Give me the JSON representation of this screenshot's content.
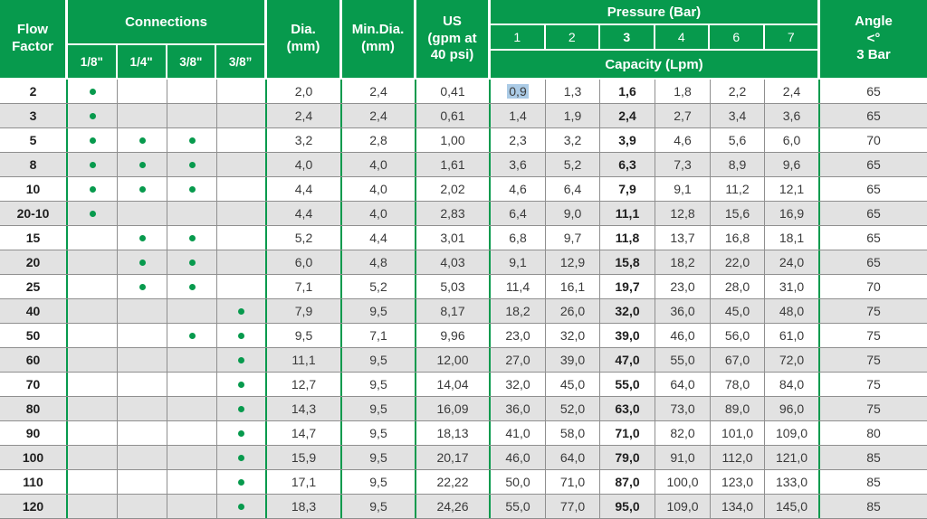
{
  "colors": {
    "header_green": "#079a4d",
    "row_alt_gray": "#e2e2e2",
    "grid_gray": "#8f8f8f",
    "dot_green": "#079a4d",
    "selection_blue": "#abcbe6",
    "header_text": "#ffffff",
    "body_text": "#3a3a3a"
  },
  "header": {
    "flow_factor": "Flow\nFactor",
    "connections": "Connections",
    "connection_sizes": [
      "1/8\"",
      "1/4\"",
      "3/8\"",
      "3/8”"
    ],
    "dia": "Dia.\n(mm)",
    "min_dia": "Min.Dia.\n(mm)",
    "us": "US\n(gpm at\n40 psi)",
    "pressure": "Pressure (Bar)",
    "pressure_values": [
      "1",
      "2",
      "3",
      "4",
      "6",
      "7"
    ],
    "capacity": "Capacity (Lpm)",
    "angle": "Angle\n<°\n3 Bar"
  },
  "rows": [
    {
      "flow": "2",
      "conn": [
        1,
        0,
        0,
        0
      ],
      "dia": "2,0",
      "min_dia": "2,4",
      "us": "0,41",
      "capacity": [
        "0,9",
        "1,3",
        "1,6",
        "1,8",
        "2,2",
        "2,4"
      ],
      "angle": "65",
      "selected": 0
    },
    {
      "flow": "3",
      "conn": [
        1,
        0,
        0,
        0
      ],
      "dia": "2,4",
      "min_dia": "2,4",
      "us": "0,61",
      "capacity": [
        "1,4",
        "1,9",
        "2,4",
        "2,7",
        "3,4",
        "3,6"
      ],
      "angle": "65"
    },
    {
      "flow": "5",
      "conn": [
        1,
        1,
        1,
        0
      ],
      "dia": "3,2",
      "min_dia": "2,8",
      "us": "1,00",
      "capacity": [
        "2,3",
        "3,2",
        "3,9",
        "4,6",
        "5,6",
        "6,0"
      ],
      "angle": "70"
    },
    {
      "flow": "8",
      "conn": [
        1,
        1,
        1,
        0
      ],
      "dia": "4,0",
      "min_dia": "4,0",
      "us": "1,61",
      "capacity": [
        "3,6",
        "5,2",
        "6,3",
        "7,3",
        "8,9",
        "9,6"
      ],
      "angle": "65"
    },
    {
      "flow": "10",
      "conn": [
        1,
        1,
        1,
        0
      ],
      "dia": "4,4",
      "min_dia": "4,0",
      "us": "2,02",
      "capacity": [
        "4,6",
        "6,4",
        "7,9",
        "9,1",
        "11,2",
        "12,1"
      ],
      "angle": "65"
    },
    {
      "flow": "20-10",
      "conn": [
        1,
        0,
        0,
        0
      ],
      "dia": "4,4",
      "min_dia": "4,0",
      "us": "2,83",
      "capacity": [
        "6,4",
        "9,0",
        "11,1",
        "12,8",
        "15,6",
        "16,9"
      ],
      "angle": "65"
    },
    {
      "flow": "15",
      "conn": [
        0,
        1,
        1,
        0
      ],
      "dia": "5,2",
      "min_dia": "4,4",
      "us": "3,01",
      "capacity": [
        "6,8",
        "9,7",
        "11,8",
        "13,7",
        "16,8",
        "18,1"
      ],
      "angle": "65"
    },
    {
      "flow": "20",
      "conn": [
        0,
        1,
        1,
        0
      ],
      "dia": "6,0",
      "min_dia": "4,8",
      "us": "4,03",
      "capacity": [
        "9,1",
        "12,9",
        "15,8",
        "18,2",
        "22,0",
        "24,0"
      ],
      "angle": "65"
    },
    {
      "flow": "25",
      "conn": [
        0,
        1,
        1,
        0
      ],
      "dia": "7,1",
      "min_dia": "5,2",
      "us": "5,03",
      "capacity": [
        "11,4",
        "16,1",
        "19,7",
        "23,0",
        "28,0",
        "31,0"
      ],
      "angle": "70"
    },
    {
      "flow": "40",
      "conn": [
        0,
        0,
        0,
        1
      ],
      "dia": "7,9",
      "min_dia": "9,5",
      "us": "8,17",
      "capacity": [
        "18,2",
        "26,0",
        "32,0",
        "36,0",
        "45,0",
        "48,0"
      ],
      "angle": "75"
    },
    {
      "flow": "50",
      "conn": [
        0,
        0,
        1,
        1
      ],
      "dia": "9,5",
      "min_dia": "7,1",
      "us": "9,96",
      "capacity": [
        "23,0",
        "32,0",
        "39,0",
        "46,0",
        "56,0",
        "61,0"
      ],
      "angle": "75"
    },
    {
      "flow": "60",
      "conn": [
        0,
        0,
        0,
        1
      ],
      "dia": "11,1",
      "min_dia": "9,5",
      "us": "12,00",
      "capacity": [
        "27,0",
        "39,0",
        "47,0",
        "55,0",
        "67,0",
        "72,0"
      ],
      "angle": "75"
    },
    {
      "flow": "70",
      "conn": [
        0,
        0,
        0,
        1
      ],
      "dia": "12,7",
      "min_dia": "9,5",
      "us": "14,04",
      "capacity": [
        "32,0",
        "45,0",
        "55,0",
        "64,0",
        "78,0",
        "84,0"
      ],
      "angle": "75"
    },
    {
      "flow": "80",
      "conn": [
        0,
        0,
        0,
        1
      ],
      "dia": "14,3",
      "min_dia": "9,5",
      "us": "16,09",
      "capacity": [
        "36,0",
        "52,0",
        "63,0",
        "73,0",
        "89,0",
        "96,0"
      ],
      "angle": "75"
    },
    {
      "flow": "90",
      "conn": [
        0,
        0,
        0,
        1
      ],
      "dia": "14,7",
      "min_dia": "9,5",
      "us": "18,13",
      "capacity": [
        "41,0",
        "58,0",
        "71,0",
        "82,0",
        "101,0",
        "109,0"
      ],
      "angle": "80"
    },
    {
      "flow": "100",
      "conn": [
        0,
        0,
        0,
        1
      ],
      "dia": "15,9",
      "min_dia": "9,5",
      "us": "20,17",
      "capacity": [
        "46,0",
        "64,0",
        "79,0",
        "91,0",
        "112,0",
        "121,0"
      ],
      "angle": "85"
    },
    {
      "flow": "110",
      "conn": [
        0,
        0,
        0,
        1
      ],
      "dia": "17,1",
      "min_dia": "9,5",
      "us": "22,22",
      "capacity": [
        "50,0",
        "71,0",
        "87,0",
        "100,0",
        "123,0",
        "133,0"
      ],
      "angle": "85"
    },
    {
      "flow": "120",
      "conn": [
        0,
        0,
        0,
        1
      ],
      "dia": "18,3",
      "min_dia": "9,5",
      "us": "24,26",
      "capacity": [
        "55,0",
        "77,0",
        "95,0",
        "109,0",
        "134,0",
        "145,0"
      ],
      "angle": "85"
    }
  ]
}
